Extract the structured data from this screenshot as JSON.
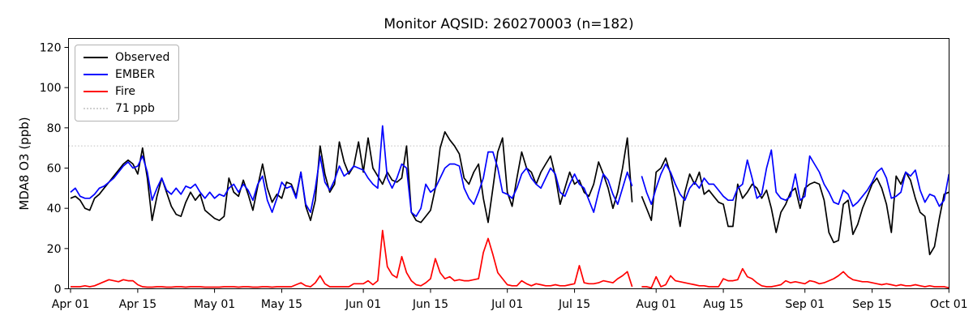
{
  "title": "Monitor AQSID: 260270003 (n=182)",
  "axes": {
    "ylabel": "MDA8 O3 (ppb)",
    "yticks": [
      0,
      20,
      40,
      60,
      80,
      100,
      120
    ],
    "xtick_labels": [
      "Apr 01",
      "Apr 15",
      "May 01",
      "May 15",
      "Jun 01",
      "Jun 15",
      "Jul 01",
      "Jul 15",
      "Aug 01",
      "Aug 15",
      "Sep 01",
      "Sep 15",
      "Oct 01"
    ],
    "xtick_days": [
      0,
      14,
      30,
      44,
      61,
      75,
      91,
      105,
      122,
      136,
      153,
      167,
      183
    ],
    "ylim": [
      0,
      124
    ]
  },
  "legend": [
    {
      "label": "Observed",
      "color": "#000000",
      "style": "solid"
    },
    {
      "label": "EMBER",
      "color": "#0000ff",
      "style": "solid"
    },
    {
      "label": "Fire",
      "color": "#ff0000",
      "style": "solid"
    },
    {
      "label": "71 ppb",
      "color": "#d0d0d0",
      "style": "dotted"
    }
  ],
  "chart_data": {
    "type": "line",
    "title": "Monitor AQSID: 260270003 (n=182)",
    "xlabel": "",
    "ylabel": "MDA8 O3 (ppb)",
    "x_start": "Apr 01",
    "x_end": "Oct 01",
    "x_frequency": "daily",
    "n_points_label": 182,
    "grid": false,
    "legend_position": "upper left",
    "reference_line": {
      "label": "71 ppb",
      "value": 71,
      "color": "#d0d0d0",
      "style": "dotted"
    },
    "note": "values are daily MDA8 ozone in ppb from Apr 01 through Oct 01; null = missing day (Jul 28)",
    "series": [
      {
        "name": "Observed",
        "color": "#000000",
        "style": "solid",
        "values": [
          45,
          46,
          44,
          40,
          39,
          45,
          47,
          50,
          53,
          56,
          59,
          62,
          64,
          62,
          57,
          70,
          55,
          34,
          46,
          55,
          48,
          41,
          37,
          36,
          43,
          48,
          44,
          47,
          39,
          37,
          35,
          34,
          36,
          55,
          48,
          46,
          54,
          47,
          39,
          51,
          62,
          50,
          43,
          47,
          45,
          53,
          52,
          46,
          58,
          41,
          34,
          44,
          71,
          57,
          48,
          52,
          73,
          63,
          57,
          61,
          73,
          58,
          75,
          60,
          56,
          52,
          58,
          54,
          53,
          55,
          71,
          38,
          34,
          33,
          36,
          39,
          50,
          70,
          78,
          74,
          71,
          67,
          55,
          52,
          58,
          62,
          45,
          33,
          50,
          68,
          75,
          48,
          41,
          55,
          68,
          60,
          58,
          52,
          58,
          62,
          66,
          56,
          42,
          50,
          58,
          52,
          54,
          48,
          46,
          52,
          63,
          57,
          50,
          40,
          48,
          60,
          75,
          43,
          null,
          46,
          40,
          34,
          58,
          60,
          65,
          57,
          45,
          31,
          48,
          57,
          52,
          58,
          47,
          49,
          46,
          43,
          42,
          31,
          31,
          52,
          45,
          48,
          52,
          50,
          45,
          49,
          40,
          28,
          38,
          42,
          48,
          50,
          40,
          50,
          52,
          53,
          52,
          44,
          28,
          23,
          24,
          42,
          44,
          27,
          32,
          40,
          46,
          52,
          55,
          50,
          42,
          28,
          56,
          52,
          58,
          54,
          45,
          38,
          36,
          17,
          21,
          35,
          47,
          48
        ]
      },
      {
        "name": "EMBER",
        "color": "#0000ff",
        "style": "solid",
        "values": [
          48,
          50,
          46,
          45,
          45,
          47,
          50,
          51,
          53,
          55,
          58,
          61,
          63,
          60,
          61,
          66,
          58,
          44,
          50,
          55,
          49,
          47,
          50,
          47,
          51,
          50,
          52,
          48,
          45,
          48,
          45,
          47,
          46,
          50,
          52,
          48,
          52,
          49,
          44,
          52,
          56,
          44,
          38,
          45,
          53,
          50,
          51,
          45,
          58,
          42,
          38,
          50,
          66,
          53,
          49,
          54,
          61,
          56,
          58,
          61,
          60,
          59,
          55,
          52,
          50,
          81,
          55,
          50,
          55,
          62,
          60,
          38,
          36,
          40,
          52,
          48,
          50,
          55,
          60,
          62,
          62,
          61,
          50,
          45,
          42,
          48,
          55,
          68,
          68,
          60,
          48,
          47,
          45,
          50,
          57,
          60,
          55,
          52,
          50,
          55,
          60,
          57,
          48,
          46,
          52,
          57,
          52,
          50,
          44,
          38,
          48,
          57,
          54,
          47,
          42,
          50,
          58,
          51,
          null,
          56,
          48,
          42,
          50,
          57,
          62,
          58,
          52,
          47,
          44,
          50,
          53,
          50,
          55,
          52,
          52,
          49,
          46,
          44,
          44,
          50,
          52,
          64,
          55,
          45,
          47,
          60,
          69,
          48,
          45,
          44,
          46,
          57,
          44,
          46,
          66,
          62,
          58,
          52,
          48,
          43,
          42,
          49,
          47,
          41,
          43,
          46,
          49,
          53,
          58,
          60,
          55,
          45,
          46,
          48,
          58,
          56,
          59,
          49,
          43,
          47,
          46,
          41,
          44,
          57
        ]
      },
      {
        "name": "Fire",
        "color": "#ff0000",
        "style": "solid",
        "values": [
          1,
          1,
          1,
          1.5,
          1,
          1.5,
          2.5,
          3.5,
          4.5,
          4,
          3.5,
          4.5,
          4,
          4,
          2,
          1,
          0.8,
          0.8,
          1,
          1,
          0.8,
          0.8,
          1,
          1,
          0.8,
          1,
          1,
          1,
          0.8,
          0.8,
          0.8,
          0.8,
          1,
          1,
          1,
          0.8,
          1,
          1,
          0.8,
          0.8,
          1,
          1,
          0.8,
          1,
          1,
          1,
          1,
          2,
          3,
          1.5,
          1,
          3,
          6.5,
          2.5,
          1,
          1,
          1,
          1,
          1,
          2.5,
          2.5,
          2.5,
          4,
          2,
          4,
          29,
          11,
          7,
          5.5,
          16,
          8,
          4,
          2,
          1.5,
          3,
          5,
          15,
          8,
          5,
          6,
          4,
          4.5,
          4,
          4,
          4.5,
          5,
          18,
          25,
          17,
          8,
          5,
          2,
          1.5,
          1.5,
          4,
          2.5,
          1.5,
          2.5,
          2,
          1.5,
          1.5,
          2,
          1.5,
          1.5,
          2,
          2.5,
          11.5,
          3,
          2.5,
          2.5,
          3,
          4,
          3.5,
          3,
          5,
          6.5,
          8.5,
          1,
          null,
          1,
          1,
          0.5,
          6,
          1,
          2,
          6.5,
          4,
          3.5,
          3,
          2.5,
          2,
          1.5,
          1.5,
          1,
          1,
          1,
          5,
          4,
          4,
          4.5,
          10,
          6,
          5,
          3,
          1.5,
          1,
          1,
          1.5,
          2,
          4,
          3,
          3.5,
          3,
          2.5,
          4,
          3.5,
          2.5,
          3,
          4,
          5,
          6.5,
          8.5,
          6,
          4.5,
          4,
          3.5,
          3.5,
          3,
          2.5,
          2,
          2.5,
          2,
          1.5,
          2,
          1.5,
          1.5,
          2,
          1.5,
          1,
          1.5,
          1,
          1,
          1,
          0.5
        ]
      }
    ]
  }
}
